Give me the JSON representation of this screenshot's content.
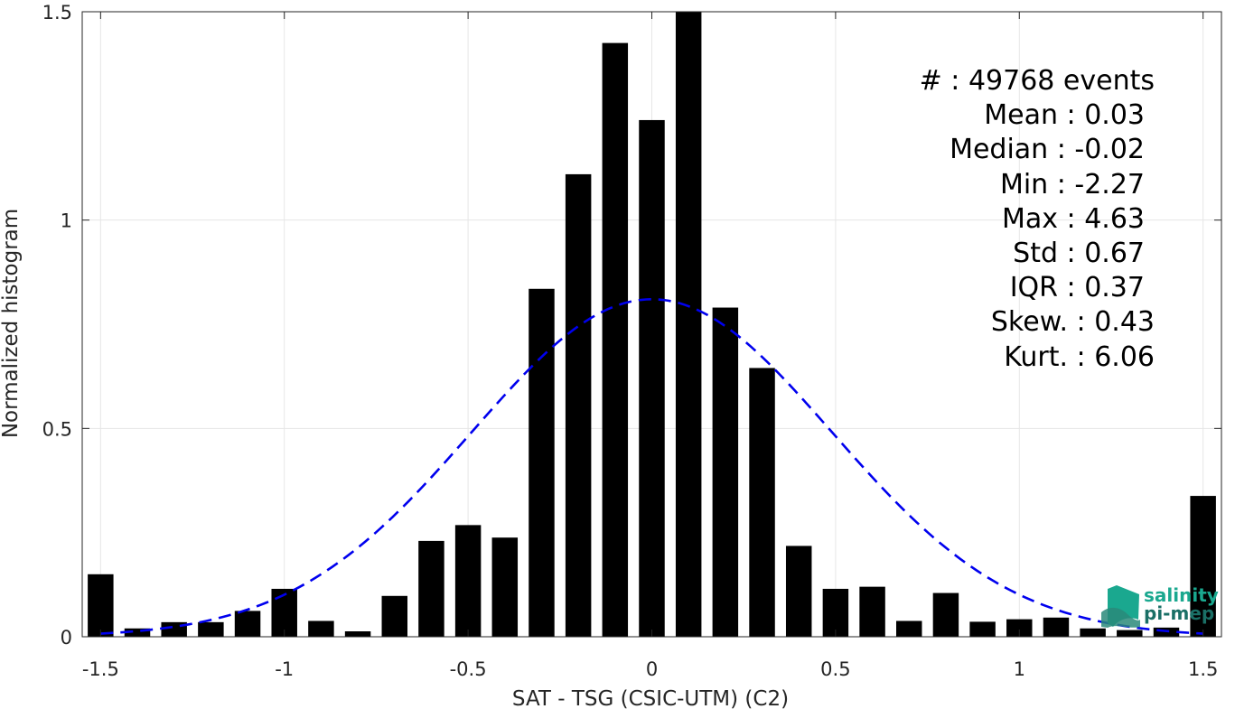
{
  "chart_data": {
    "type": "bar",
    "xlabel": "SAT - TSG (CSIC-UTM) (C2)",
    "ylabel": "Normalized histogram",
    "xlim": [
      -1.55,
      1.55
    ],
    "ylim": [
      0,
      1.5
    ],
    "grid": true,
    "x_ticks": [
      {
        "value": -1.5,
        "label": "-1.5"
      },
      {
        "value": -1,
        "label": "-1"
      },
      {
        "value": -0.5,
        "label": "-0.5"
      },
      {
        "value": 0,
        "label": "0"
      },
      {
        "value": 0.5,
        "label": "0.5"
      },
      {
        "value": 1,
        "label": "1"
      },
      {
        "value": 1.5,
        "label": "1.5"
      }
    ],
    "y_ticks": [
      {
        "value": 0,
        "label": "0"
      },
      {
        "value": 0.5,
        "label": "0.5"
      },
      {
        "value": 1,
        "label": "1"
      },
      {
        "value": 1.5,
        "label": "1.5"
      }
    ],
    "bin_width": 0.1,
    "bar_color": "#000000",
    "bins": [
      {
        "x": -1.5,
        "y": 0.15
      },
      {
        "x": -1.4,
        "y": 0.02
      },
      {
        "x": -1.3,
        "y": 0.035
      },
      {
        "x": -1.2,
        "y": 0.035
      },
      {
        "x": -1.1,
        "y": 0.062
      },
      {
        "x": -1.0,
        "y": 0.115
      },
      {
        "x": -0.9,
        "y": 0.038
      },
      {
        "x": -0.8,
        "y": 0.013
      },
      {
        "x": -0.7,
        "y": 0.098
      },
      {
        "x": -0.6,
        "y": 0.23
      },
      {
        "x": -0.5,
        "y": 0.268
      },
      {
        "x": -0.4,
        "y": 0.238
      },
      {
        "x": -0.3,
        "y": 0.835
      },
      {
        "x": -0.2,
        "y": 1.11
      },
      {
        "x": -0.1,
        "y": 1.425
      },
      {
        "x": 0.0,
        "y": 1.24
      },
      {
        "x": 0.1,
        "y": 1.5
      },
      {
        "x": 0.2,
        "y": 0.79
      },
      {
        "x": 0.3,
        "y": 0.645
      },
      {
        "x": 0.4,
        "y": 0.218
      },
      {
        "x": 0.5,
        "y": 0.115
      },
      {
        "x": 0.6,
        "y": 0.12
      },
      {
        "x": 0.7,
        "y": 0.038
      },
      {
        "x": 0.8,
        "y": 0.105
      },
      {
        "x": 0.9,
        "y": 0.036
      },
      {
        "x": 1.0,
        "y": 0.042
      },
      {
        "x": 1.1,
        "y": 0.046
      },
      {
        "x": 1.2,
        "y": 0.02
      },
      {
        "x": 1.3,
        "y": 0.016
      },
      {
        "x": 1.4,
        "y": 0.022
      },
      {
        "x": 1.5,
        "y": 0.338
      }
    ],
    "fit_curve": {
      "style": "dashed",
      "color": "#0000ee",
      "mean": 0.0,
      "std": 0.49,
      "peak": 0.81,
      "x_range": [
        -1.5,
        1.5
      ]
    }
  },
  "stats": [
    {
      "label": "#  : 49768 events"
    },
    {
      "label": "Mean : 0.03"
    },
    {
      "label": "Median : -0.02"
    },
    {
      "label": "Min : -2.27"
    },
    {
      "label": "Max : 4.63"
    },
    {
      "label": "Std : 0.67"
    },
    {
      "label": "IQR : 0.37"
    },
    {
      "label": "Skew. : 0.43"
    },
    {
      "label": "Kurt. : 6.06"
    }
  ],
  "logo": {
    "line1": "salinity",
    "line2": "pi-mep",
    "color_top": "#1aa88f",
    "color_bottom": "#1a6f66"
  }
}
